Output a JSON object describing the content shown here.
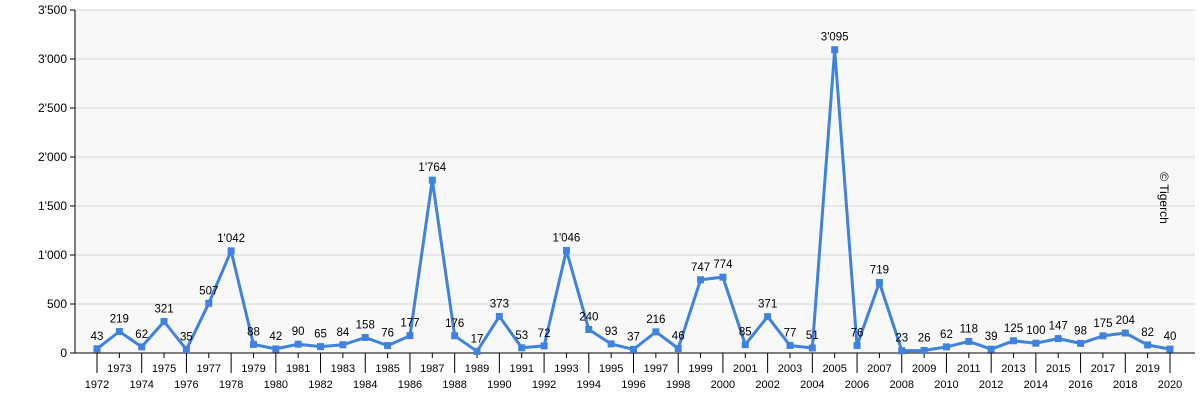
{
  "chart_data": {
    "type": "line",
    "title": "",
    "xlabel": "",
    "ylabel": "",
    "watermark": "© Tigerch",
    "ylim": [
      0,
      3500
    ],
    "yticks": [
      0,
      500,
      1000,
      1500,
      2000,
      2500,
      3000,
      3500
    ],
    "ytick_labels": [
      "0",
      "500",
      "1'000",
      "1'500",
      "2'000",
      "2'500",
      "3'000",
      "3'500"
    ],
    "grid": true,
    "legend": "none",
    "colors": {
      "line": "#3f82e0",
      "marker": "#3f82e0",
      "plot_bg": "#f8f8f8",
      "grid": "#d6d6d6",
      "axis": "#000000"
    },
    "x": [
      "1972",
      "1973",
      "1974",
      "1975",
      "1976",
      "1977",
      "1978",
      "1979",
      "1980",
      "1981",
      "1982",
      "1983",
      "1984",
      "1985",
      "1986",
      "1987",
      "1988",
      "1989",
      "1990",
      "1991",
      "1992",
      "1993",
      "1994",
      "1995",
      "1996",
      "1997",
      "1998",
      "1999",
      "2000",
      "2001",
      "2002",
      "2003",
      "2004",
      "2005",
      "2006",
      "2007",
      "2008",
      "2009",
      "2010",
      "2011",
      "2012",
      "2013",
      "2014",
      "2015",
      "2016",
      "2017",
      "2018",
      "2019",
      "2020"
    ],
    "series": [
      {
        "values": [
          43,
          219,
          62,
          321,
          35,
          507,
          1042,
          88,
          42,
          90,
          65,
          84,
          158,
          76,
          177,
          1764,
          176,
          17,
          373,
          53,
          72,
          1046,
          240,
          93,
          37,
          216,
          46,
          747,
          774,
          85,
          371,
          77,
          51,
          3095,
          76,
          719,
          23,
          26,
          62,
          118,
          39,
          125,
          100,
          147,
          98,
          175,
          204,
          82,
          40
        ],
        "labels": [
          "43",
          "219",
          "62",
          "321",
          "35",
          "507",
          "1'042",
          "88",
          "42",
          "90",
          "65",
          "84",
          "158",
          "76",
          "177",
          "1'764",
          "176",
          "17",
          "373",
          "53",
          "72",
          "1'046",
          "240",
          "93",
          "37",
          "216",
          "46",
          "747",
          "774",
          "85",
          "371",
          "77",
          "51",
          "3'095",
          "76",
          "719",
          "23",
          "26",
          "62",
          "118",
          "39",
          "125",
          "100",
          "147",
          "98",
          "175",
          "204",
          "82",
          "40"
        ]
      }
    ]
  }
}
